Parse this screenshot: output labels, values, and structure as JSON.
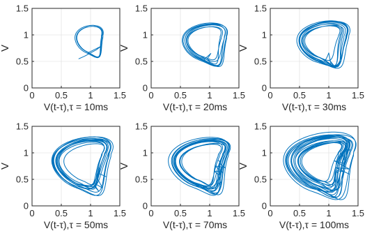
{
  "figure": {
    "color_trajectory": "#0072BD",
    "color_grid": "#dcdcdc",
    "color_axes": "#262626"
  },
  "chart_data": [
    {
      "type": "line",
      "xlabel": "V(t-τ),τ = 10ms",
      "ylabel": "V",
      "xlim": [
        0,
        1.5
      ],
      "ylim": [
        0,
        1.5
      ],
      "xticks": [
        "0",
        "0.5",
        "1",
        "1.5"
      ],
      "yticks": [
        "0",
        "0.5",
        "1",
        "1.5"
      ],
      "grid": true,
      "series": [
        {
          "loop": {
            "cx": 0.98,
            "cy": 0.95,
            "rx": 0.22,
            "ry": 0.24,
            "skew": 0.12
          },
          "turns": 3,
          "spread": 0.02,
          "transient": [
            [
              0.8,
              0.55
            ],
            [
              0.9,
              0.6
            ],
            [
              1.0,
              0.66
            ],
            [
              1.1,
              0.72
            ],
            [
              1.17,
              0.78
            ]
          ]
        }
      ]
    },
    {
      "type": "line",
      "xlabel": "V(t-τ),τ = 20ms",
      "ylabel": "V",
      "xlim": [
        0,
        1.5
      ],
      "ylim": [
        0,
        1.5
      ],
      "xticks": [
        "0",
        "0.5",
        "1",
        "1.5"
      ],
      "yticks": [
        "0",
        "0.5",
        "1",
        "1.5"
      ],
      "grid": true,
      "series": [
        {
          "loop": {
            "cx": 0.92,
            "cy": 0.92,
            "rx": 0.32,
            "ry": 0.3,
            "skew": 0.2
          },
          "turns": 7,
          "spread": 0.05,
          "transient": [
            [
              0.88,
              0.5
            ],
            [
              0.95,
              0.58
            ],
            [
              1.02,
              0.65
            ]
          ]
        }
      ]
    },
    {
      "type": "line",
      "xlabel": "V(t-τ),τ = 30ms",
      "ylabel": "V",
      "xlim": [
        0,
        1.5
      ],
      "ylim": [
        0,
        1.5
      ],
      "xticks": [
        "0",
        "0.5",
        "1",
        "1.5"
      ],
      "yticks": [
        "0",
        "0.5",
        "1",
        "1.5"
      ],
      "grid": true,
      "series": [
        {
          "loop": {
            "cx": 0.9,
            "cy": 0.93,
            "rx": 0.35,
            "ry": 0.32,
            "skew": 0.25
          },
          "turns": 9,
          "spread": 0.07,
          "transient": [
            [
              0.93,
              0.5
            ],
            [
              0.97,
              0.58
            ],
            [
              1.0,
              0.66
            ]
          ]
        }
      ]
    },
    {
      "type": "line",
      "xlabel": "V(t-τ),τ = 50ms",
      "ylabel": "V",
      "xlim": [
        0,
        1.5
      ],
      "ylim": [
        0,
        1.5
      ],
      "xticks": [
        "0",
        "0.5",
        "1",
        "1.5"
      ],
      "yticks": [
        "0",
        "0.5",
        "1",
        "1.5"
      ],
      "grid": true,
      "series": [
        {
          "loop": {
            "cx": 0.85,
            "cy": 0.9,
            "rx": 0.38,
            "ry": 0.38,
            "skew": 0.35
          },
          "turns": 12,
          "spread": 0.09,
          "transient": []
        }
      ]
    },
    {
      "type": "line",
      "xlabel": "V(t-τ),τ = 70ms",
      "ylabel": "V",
      "xlim": [
        0,
        1.5
      ],
      "ylim": [
        0,
        1.5
      ],
      "xticks": [
        "0",
        "0.5",
        "1",
        "1.5"
      ],
      "yticks": [
        "0",
        "0.5",
        "1",
        "1.5"
      ],
      "grid": true,
      "series": [
        {
          "loop": {
            "cx": 0.85,
            "cy": 0.9,
            "rx": 0.4,
            "ry": 0.38,
            "skew": 0.35
          },
          "turns": 14,
          "spread": 0.1,
          "transient": []
        }
      ]
    },
    {
      "type": "line",
      "xlabel": "V(t-τ),τ = 100ms",
      "ylabel": "V",
      "xlim": [
        0,
        1.5
      ],
      "ylim": [
        0,
        1.5
      ],
      "xticks": [
        "0",
        "0.5",
        "1",
        "1.5"
      ],
      "yticks": [
        "0",
        "0.5",
        "1",
        "1.5"
      ],
      "grid": true,
      "series": [
        {
          "loop": {
            "cx": 0.85,
            "cy": 0.92,
            "rx": 0.44,
            "ry": 0.42,
            "skew": 0.4
          },
          "turns": 18,
          "spread": 0.14,
          "transient": []
        }
      ]
    }
  ]
}
